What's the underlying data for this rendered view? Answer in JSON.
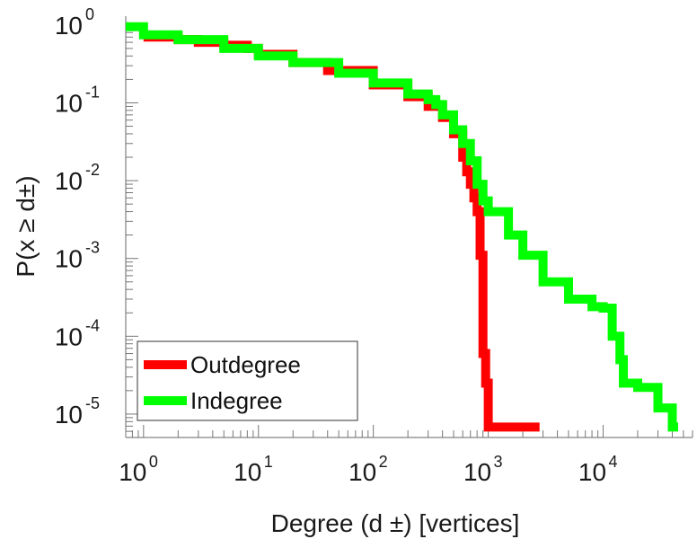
{
  "chart_data": {
    "type": "line",
    "title": "",
    "xlabel": "Degree (d ±) [vertices]",
    "ylabel": "P(x ≥ d±)",
    "xscale": "log",
    "yscale": "log",
    "xlim": [
      0.7,
      60000
    ],
    "ylim": [
      5e-06,
      1.3
    ],
    "grid": false,
    "legend_position": "bottom-left",
    "x_ticks": [
      {
        "value": 1,
        "base": "10",
        "exp": "0"
      },
      {
        "value": 10,
        "base": "10",
        "exp": "1"
      },
      {
        "value": 100,
        "base": "10",
        "exp": "2"
      },
      {
        "value": 1000,
        "base": "10",
        "exp": "3"
      },
      {
        "value": 10000,
        "base": "10",
        "exp": "4"
      }
    ],
    "y_ticks": [
      {
        "value": 1,
        "base": "10",
        "exp": "0"
      },
      {
        "value": 0.1,
        "base": "10",
        "exp": "-1"
      },
      {
        "value": 0.01,
        "base": "10",
        "exp": "-2"
      },
      {
        "value": 0.001,
        "base": "10",
        "exp": "-3"
      },
      {
        "value": 0.0001,
        "base": "10",
        "exp": "-4"
      },
      {
        "value": 1e-05,
        "base": "10",
        "exp": "-5"
      }
    ],
    "series": [
      {
        "name": "Outdegree",
        "color": "#ff0000",
        "x": [
          1,
          2,
          3,
          5,
          8,
          10,
          20,
          40,
          100,
          200,
          300,
          400,
          500,
          600,
          650,
          700,
          750,
          800,
          850,
          900,
          950,
          1000,
          2800
        ],
        "y": [
          0.7,
          0.65,
          0.6,
          0.55,
          0.5,
          0.42,
          0.33,
          0.26,
          0.17,
          0.12,
          0.09,
          0.065,
          0.04,
          0.02,
          0.013,
          0.009,
          0.006,
          0.004,
          0.0011,
          6e-05,
          2.5e-05,
          6.8e-06,
          6.8e-06
        ]
      },
      {
        "name": "Indegree",
        "color": "#00ff00",
        "x": [
          0.7,
          1,
          2,
          5,
          10,
          20,
          50,
          100,
          200,
          300,
          350,
          400,
          500,
          600,
          700,
          800,
          900,
          1000,
          1500,
          2000,
          3000,
          5000,
          8000,
          10000,
          12000,
          14000,
          15000,
          20000,
          30000,
          40000,
          45000
        ],
        "y": [
          0.95,
          0.75,
          0.65,
          0.5,
          0.4,
          0.33,
          0.24,
          0.18,
          0.13,
          0.11,
          0.095,
          0.07,
          0.045,
          0.03,
          0.018,
          0.009,
          0.0055,
          0.004,
          0.002,
          0.0011,
          0.0005,
          0.0003,
          0.00024,
          0.00023,
          0.0001,
          5e-05,
          2.5e-05,
          2.2e-05,
          1.2e-05,
          6.8e-06,
          6.8e-06
        ]
      }
    ]
  }
}
